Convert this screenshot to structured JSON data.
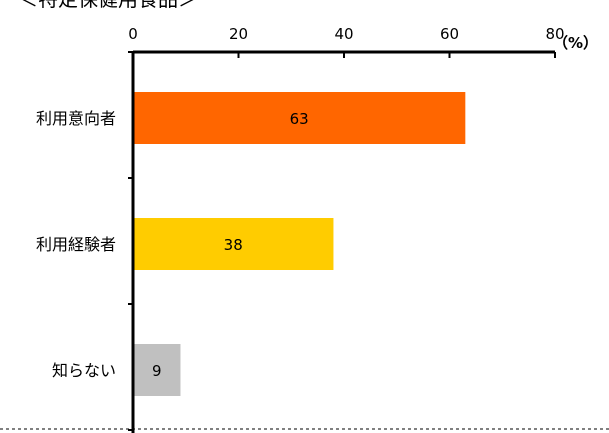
{
  "chart_data": {
    "type": "bar",
    "orientation": "horizontal",
    "title": "＜特定保健用食品＞",
    "unit": "（%）",
    "categories": [
      "利用意向者",
      "利用経験者",
      "知らない"
    ],
    "values": [
      63,
      38,
      9
    ],
    "xlim": [
      0,
      80
    ],
    "ticks": [
      "0",
      "20",
      "40",
      "60",
      "80"
    ],
    "grid": false,
    "legend": "none",
    "colors": [
      "#FF6600",
      "#FFCC00",
      "#C0C0C0"
    ]
  }
}
